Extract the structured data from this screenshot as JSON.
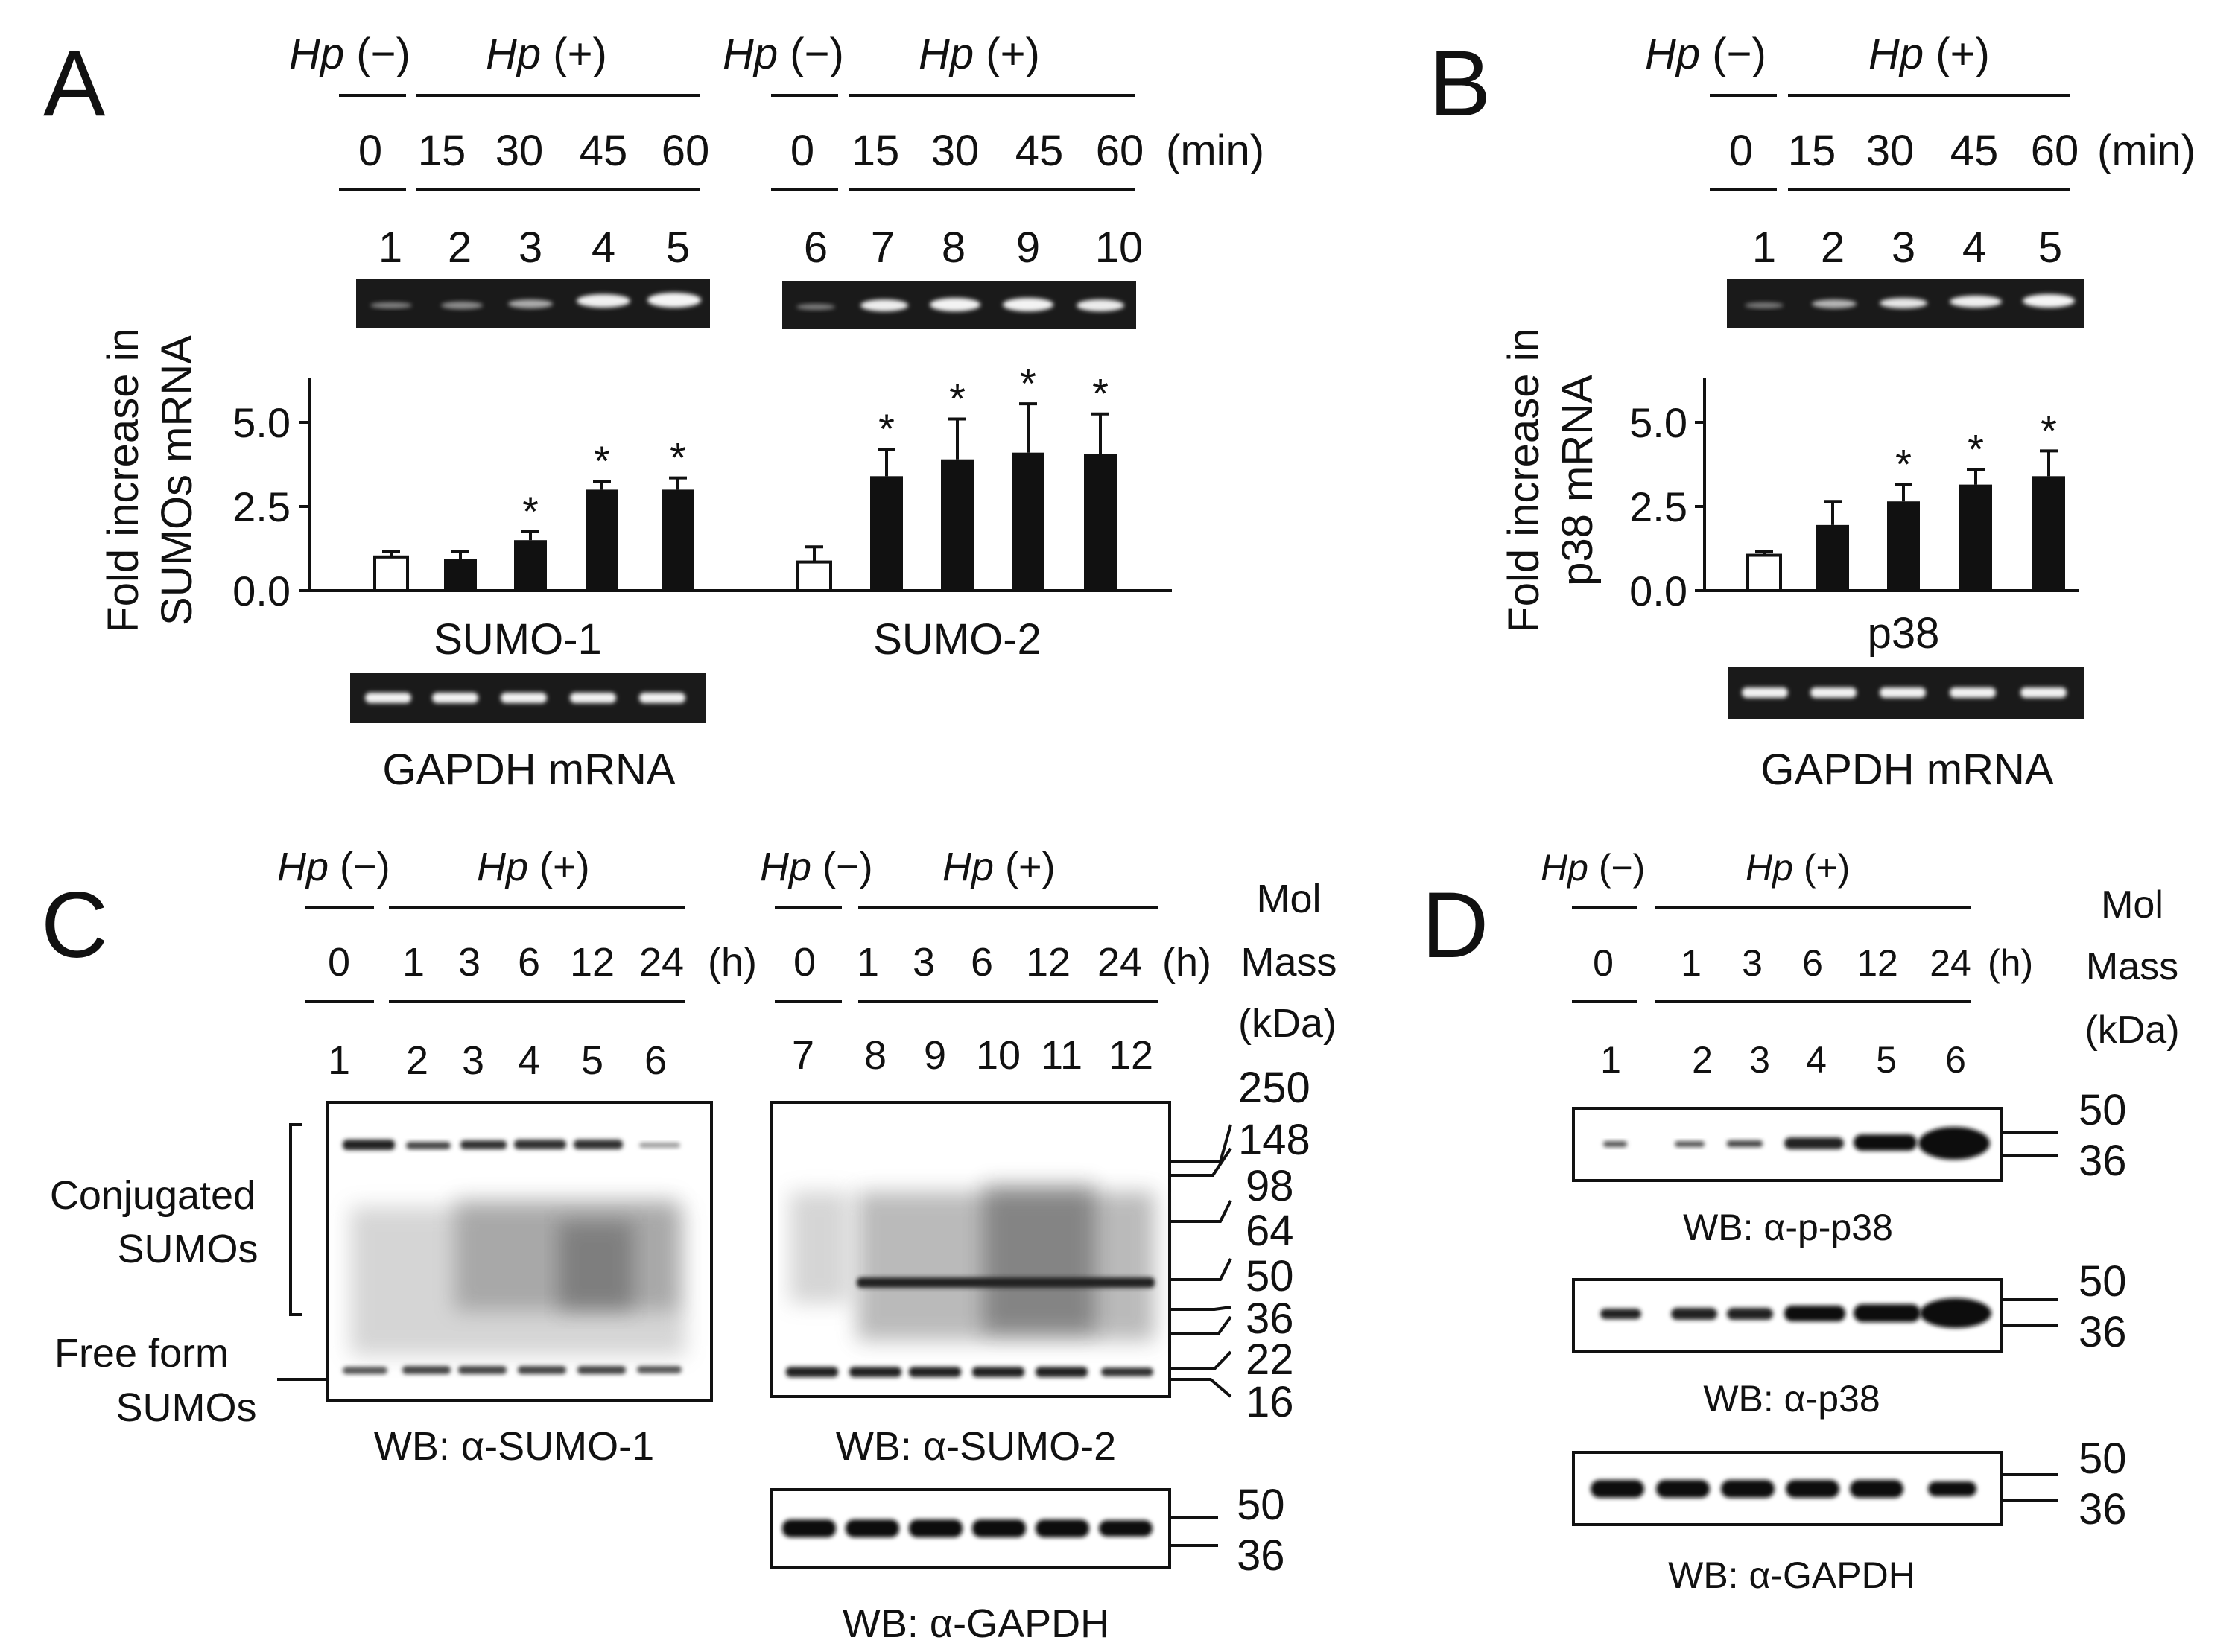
{
  "colors": {
    "ink": "#111111",
    "gel_dark": "#1a1a1a",
    "band_light": "#f2f2f2",
    "band_dark": "#1a1a1a"
  },
  "panel_labels": [
    "A",
    "B",
    "C",
    "D"
  ],
  "hp": {
    "neg": "Hp",
    "neg_sign": "(−)",
    "pos": "Hp",
    "pos_sign": "(+)"
  },
  "panelA": {
    "times": [
      "0",
      "15",
      "30",
      "45",
      "60"
    ],
    "unit": "(min)",
    "lanes_left": [
      "1",
      "2",
      "3",
      "4",
      "5"
    ],
    "lanes_right": [
      "6",
      "7",
      "8",
      "9",
      "10"
    ],
    "ylabel_line1": "Fold increase in",
    "ylabel_line2": "SUMOs mRNA",
    "yticks": [
      "5.0",
      "2.5",
      "0.0"
    ],
    "group1": "SUMO-1",
    "group2": "SUMO-2",
    "gapdh_label": "GAPDH mRNA",
    "star": "*"
  },
  "panelB": {
    "times": [
      "0",
      "15",
      "30",
      "45",
      "60"
    ],
    "unit": "(min)",
    "lanes": [
      "1",
      "2",
      "3",
      "4",
      "5"
    ],
    "ylabel_line1": "Fold increase in",
    "ylabel_line2": "p38 mRNA",
    "yticks": [
      "5.0",
      "2.5",
      "0.0"
    ],
    "group": "p38",
    "gapdh_label": "GAPDH mRNA",
    "star": "*"
  },
  "panelC": {
    "times": [
      "0",
      "1",
      "3",
      "6",
      "12",
      "24"
    ],
    "unit": "(h)",
    "lanes_left": [
      "1",
      "2",
      "3",
      "4",
      "5",
      "6"
    ],
    "lanes_right": [
      "7",
      "8",
      "9",
      "10",
      "11",
      "12"
    ],
    "mol_mass": [
      "Mol",
      "Mass",
      "(kDa)"
    ],
    "markers": [
      "250",
      "148",
      "98",
      "64",
      "50",
      "36",
      "22",
      "16"
    ],
    "gapdh_markers": [
      "50",
      "36"
    ],
    "conjugated": [
      "Conjugated",
      "SUMOs"
    ],
    "free": [
      "Free form",
      "SUMOs"
    ],
    "wb_sumo1": "WB: α-SUMO-1",
    "wb_sumo2": "WB: α-SUMO-2",
    "wb_gapdh": "WB: α-GAPDH"
  },
  "panelD": {
    "times": [
      "0",
      "1",
      "3",
      "6",
      "12",
      "24"
    ],
    "unit": "(h)",
    "lanes": [
      "1",
      "2",
      "3",
      "4",
      "5",
      "6"
    ],
    "mol_mass": [
      "Mol",
      "Mass",
      "(kDa)"
    ],
    "markers": [
      "50",
      "36"
    ],
    "wb_pp38": "WB: α-p-p38",
    "wb_p38": "WB: α-p38",
    "wb_gapdh": "WB: α-GAPDH"
  },
  "chart_data": [
    {
      "type": "bar",
      "categories": [
        "1",
        "2",
        "3",
        "4",
        "5"
      ],
      "values": [
        1.0,
        0.95,
        1.5,
        3.0,
        3.0
      ],
      "errors": [
        0.15,
        0.2,
        0.25,
        0.25,
        0.35
      ],
      "significant": [
        false,
        false,
        true,
        true,
        true
      ],
      "title": "",
      "xlabel": "SUMO-1",
      "ylabel": "Fold increase in SUMOs mRNA",
      "ylim": [
        0,
        6.0
      ]
    },
    {
      "type": "bar",
      "categories": [
        "6",
        "7",
        "8",
        "9",
        "10"
      ],
      "values": [
        0.85,
        3.4,
        3.9,
        4.1,
        4.05
      ],
      "errors": [
        0.45,
        0.8,
        1.2,
        1.45,
        1.2
      ],
      "significant": [
        false,
        true,
        true,
        true,
        true
      ],
      "title": "",
      "xlabel": "SUMO-2",
      "ylabel": "Fold increase in SUMOs mRNA",
      "ylim": [
        0,
        6.0
      ]
    },
    {
      "type": "bar",
      "categories": [
        "1",
        "2",
        "3",
        "4",
        "5"
      ],
      "values": [
        1.05,
        1.95,
        2.65,
        3.15,
        3.4
      ],
      "errors": [
        0.12,
        0.7,
        0.5,
        0.45,
        0.75
      ],
      "significant": [
        false,
        false,
        true,
        true,
        true
      ],
      "title": "",
      "xlabel": "p38",
      "ylabel": "Fold increase in p38 mRNA",
      "ylim": [
        0,
        6.0
      ]
    }
  ]
}
